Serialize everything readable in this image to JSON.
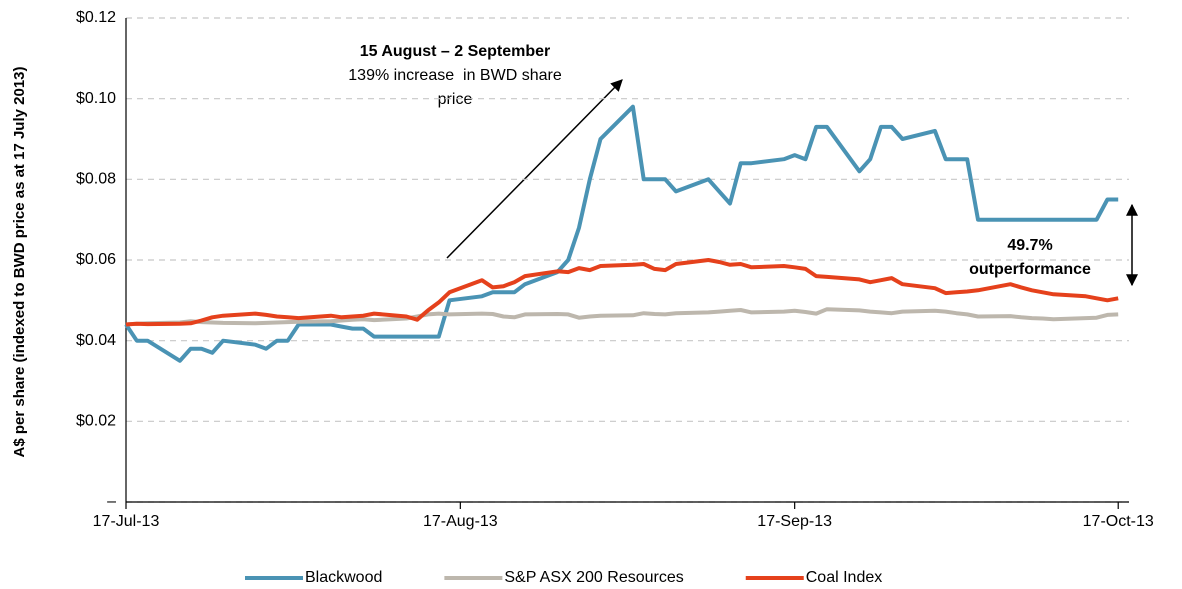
{
  "chart_data": {
    "type": "line",
    "y_label": "A$ per share (indexed to BWD price as at 17 July 2013)",
    "annotations": [
      "15 August – 2 September",
      "139% increase  in BWD share",
      "price",
      "49.7%",
      "outperformance"
    ],
    "x": [
      "2013-07-17",
      "2013-07-18",
      "2013-07-19",
      "2013-07-22",
      "2013-07-23",
      "2013-07-24",
      "2013-07-25",
      "2013-07-26",
      "2013-07-29",
      "2013-07-30",
      "2013-07-31",
      "2013-08-01",
      "2013-08-02",
      "2013-08-05",
      "2013-08-06",
      "2013-08-07",
      "2013-08-08",
      "2013-08-09",
      "2013-08-12",
      "2013-08-13",
      "2013-08-14",
      "2013-08-15",
      "2013-08-16",
      "2013-08-19",
      "2013-08-20",
      "2013-08-21",
      "2013-08-22",
      "2013-08-23",
      "2013-08-26",
      "2013-08-27",
      "2013-08-28",
      "2013-08-29",
      "2013-08-30",
      "2013-09-02",
      "2013-09-03",
      "2013-09-04",
      "2013-09-05",
      "2013-09-06",
      "2013-09-09",
      "2013-09-10",
      "2013-09-11",
      "2013-09-12",
      "2013-09-13",
      "2013-09-16",
      "2013-09-17",
      "2013-09-18",
      "2013-09-19",
      "2013-09-20",
      "2013-09-23",
      "2013-09-24",
      "2013-09-25",
      "2013-09-26",
      "2013-09-27",
      "2013-09-30",
      "2013-10-01",
      "2013-10-02",
      "2013-10-03",
      "2013-10-04",
      "2013-10-07",
      "2013-10-08",
      "2013-10-09",
      "2013-10-10",
      "2013-10-11",
      "2013-10-14",
      "2013-10-15",
      "2013-10-16",
      "2013-10-17"
    ],
    "series": [
      {
        "name": "Blackwood",
        "color": "#4a93b4",
        "values": [
          0.044,
          0.04,
          0.04,
          0.035,
          0.038,
          0.038,
          0.037,
          0.04,
          0.039,
          0.038,
          0.04,
          0.04,
          0.044,
          0.044,
          0.0435,
          0.043,
          0.043,
          0.041,
          0.041,
          0.041,
          0.041,
          0.041,
          0.05,
          0.051,
          0.052,
          0.052,
          0.052,
          0.054,
          0.057,
          0.06,
          0.068,
          0.08,
          0.09,
          0.098,
          0.08,
          0.08,
          0.08,
          0.077,
          0.08,
          0.077,
          0.074,
          0.084,
          0.084,
          0.085,
          0.086,
          0.085,
          0.093,
          0.093,
          0.082,
          0.085,
          0.093,
          0.093,
          0.09,
          0.092,
          0.085,
          0.085,
          0.085,
          0.07,
          0.07,
          0.07,
          0.07,
          0.07,
          0.07,
          0.07,
          0.07,
          0.075,
          0.075
        ]
      },
      {
        "name": "S&P ASX 200 Resources",
        "color": "#bdb7ad",
        "values": [
          0.044,
          0.0442,
          0.0443,
          0.0445,
          0.0448,
          0.0446,
          0.0445,
          0.0444,
          0.0443,
          0.0444,
          0.0445,
          0.0446,
          0.0447,
          0.0448,
          0.045,
          0.0452,
          0.0453,
          0.0451,
          0.0455,
          0.046,
          0.0465,
          0.0467,
          0.0465,
          0.0467,
          0.0466,
          0.046,
          0.0458,
          0.0465,
          0.0466,
          0.0465,
          0.0457,
          0.046,
          0.0462,
          0.0463,
          0.0468,
          0.0466,
          0.0465,
          0.0468,
          0.047,
          0.0472,
          0.0474,
          0.0476,
          0.047,
          0.0472,
          0.0474,
          0.0471,
          0.0467,
          0.0478,
          0.0475,
          0.0472,
          0.047,
          0.0468,
          0.0472,
          0.0474,
          0.0472,
          0.0468,
          0.0465,
          0.046,
          0.0461,
          0.0458,
          0.0456,
          0.0455,
          0.0453,
          0.0456,
          0.0457,
          0.0464,
          0.0465
        ]
      },
      {
        "name": "Coal Index",
        "color": "#e5411c",
        "values": [
          0.044,
          0.0442,
          0.0441,
          0.0442,
          0.0443,
          0.045,
          0.0458,
          0.0462,
          0.0467,
          0.0464,
          0.046,
          0.0458,
          0.0456,
          0.0462,
          0.0458,
          0.046,
          0.0462,
          0.0467,
          0.046,
          0.0452,
          0.0475,
          0.0495,
          0.052,
          0.055,
          0.0532,
          0.0535,
          0.0545,
          0.056,
          0.0572,
          0.057,
          0.058,
          0.0575,
          0.0585,
          0.0588,
          0.059,
          0.0578,
          0.0575,
          0.059,
          0.06,
          0.0595,
          0.0588,
          0.059,
          0.0582,
          0.0585,
          0.0582,
          0.0578,
          0.056,
          0.0558,
          0.0552,
          0.0545,
          0.055,
          0.0555,
          0.054,
          0.053,
          0.0518,
          0.052,
          0.0522,
          0.0525,
          0.054,
          0.0532,
          0.0525,
          0.052,
          0.0515,
          0.051,
          0.0505,
          0.05,
          0.0505
        ]
      }
    ],
    "xlim": [
      "2013-07-17",
      "2013-10-18"
    ],
    "xticks": [
      {
        "value": "2013-07-17",
        "label": "17-Jul-13"
      },
      {
        "value": "2013-08-17",
        "label": "17-Aug-13"
      },
      {
        "value": "2013-09-17",
        "label": "17-Sep-13"
      },
      {
        "value": "2013-10-17",
        "label": "17-Oct-13"
      }
    ],
    "ylim": [
      0,
      0.12
    ],
    "yticks": [
      {
        "value": 0,
        "label": "–"
      },
      {
        "value": 0.02,
        "label": "$0.02"
      },
      {
        "value": 0.04,
        "label": "$0.04"
      },
      {
        "value": 0.06,
        "label": "$0.06"
      },
      {
        "value": 0.08,
        "label": "$0.08"
      },
      {
        "value": 0.1,
        "label": "$0.10"
      },
      {
        "value": 0.12,
        "label": "$0.12"
      }
    ],
    "grid": true,
    "legend": "bottom"
  }
}
